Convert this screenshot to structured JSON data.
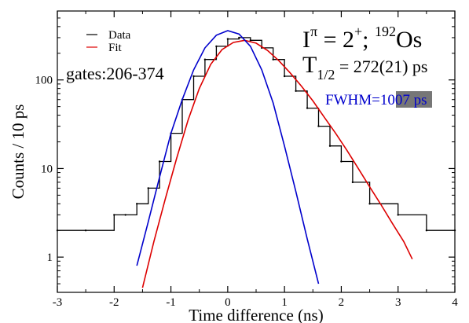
{
  "chart_data": {
    "type": "line",
    "xlabel": "Time difference (ns)",
    "ylabel": "Counts / 10 ps",
    "xlim": [
      -3,
      4
    ],
    "ylim": [
      0.4,
      600
    ],
    "yscale": "log",
    "grid": false,
    "legend_placement": "top-left",
    "x_ticks": [
      -3,
      -2,
      -1,
      0,
      1,
      2,
      3,
      4
    ],
    "x_tick_labels": [
      "-3",
      "-2",
      "-1",
      "0",
      "1",
      "2",
      "3",
      "4"
    ],
    "y_ticks": [
      1,
      10,
      100
    ],
    "y_tick_labels": [
      "1",
      "10",
      "100"
    ],
    "series": [
      {
        "name": "Data",
        "color": "#000000",
        "style": "noisy step histogram",
        "x": [
          -3.0,
          -2.5,
          -2.0,
          -1.8,
          -1.6,
          -1.4,
          -1.2,
          -1.0,
          -0.8,
          -0.6,
          -0.4,
          -0.2,
          0.0,
          0.2,
          0.4,
          0.6,
          0.8,
          1.0,
          1.2,
          1.4,
          1.6,
          1.8,
          2.0,
          2.2,
          2.5,
          3.0,
          3.5,
          4.0
        ],
        "y": [
          2,
          2,
          3,
          3,
          4,
          6,
          12,
          25,
          60,
          110,
          170,
          240,
          290,
          300,
          280,
          230,
          170,
          110,
          75,
          48,
          30,
          18,
          12,
          7,
          4,
          3,
          2,
          2
        ]
      },
      {
        "name": "Fit",
        "color": "#dd0000",
        "x": [
          -1.5,
          -1.3,
          -1.1,
          -0.9,
          -0.7,
          -0.5,
          -0.3,
          -0.1,
          0.1,
          0.3,
          0.5,
          0.7,
          0.9,
          1.1,
          1.3,
          1.5,
          1.7,
          1.9,
          2.1,
          2.3,
          2.5,
          2.7,
          2.9,
          3.1,
          3.25
        ],
        "y": [
          0.45,
          1.5,
          4.5,
          13,
          35,
          80,
          150,
          220,
          265,
          280,
          260,
          215,
          165,
          120,
          85,
          58,
          38,
          25,
          16,
          10,
          6.2,
          3.9,
          2.4,
          1.5,
          0.95
        ]
      },
      {
        "name": "",
        "color": "#0000cc",
        "x": [
          -1.6,
          -1.4,
          -1.2,
          -1.0,
          -0.8,
          -0.6,
          -0.4,
          -0.2,
          0.0,
          0.2,
          0.4,
          0.6,
          0.8,
          1.0,
          1.2,
          1.4,
          1.6
        ],
        "y": [
          0.8,
          2.5,
          8,
          25,
          60,
          130,
          230,
          320,
          360,
          330,
          240,
          130,
          55,
          18,
          5.5,
          1.6,
          0.5
        ]
      }
    ],
    "annotations": {
      "gates": "gates:206-374",
      "spin_I": "I",
      "spin_pi": "π",
      "spin_rest": " = 2",
      "spin_plus": "+",
      "spin_sep": "; ",
      "mass": "192",
      "element": "Os",
      "half_T": "T",
      "half_sub": "1/2",
      "half_value": " = 272(21) ps",
      "fwhm_prefix": "FWHM=",
      "fwhm_value": "1007",
      "fwhm_unit": " ps"
    }
  }
}
